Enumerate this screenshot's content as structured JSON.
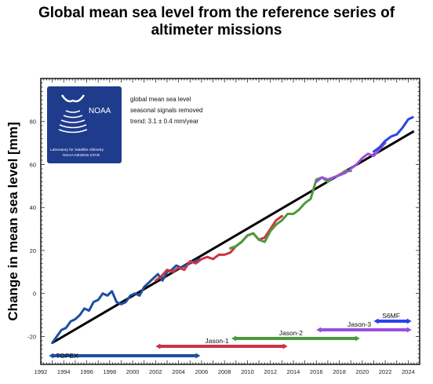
{
  "title_line1": "Global mean sea level from the reference series of",
  "title_line2": "altimeter missions",
  "logo": {
    "brand": "NOAA",
    "lab": "Laboratory for Satellite Altimetry",
    "org": "NOAA-NESDIS-STAR",
    "icon": "noaa-wave-logo"
  },
  "legend_lines": [
    "global mean sea level",
    "seasonal signals removed",
    "trend:  3.1 ± 0.4 mm/year"
  ],
  "colors": {
    "TOPEX": "#1f4fa0",
    "Jason-1": "#cc3344",
    "Jason-2": "#4e9a3a",
    "Jason-3": "#9b4de0",
    "S6MF": "#2b44e8",
    "trend": "#000000",
    "logo_bg": "#1f3b8c"
  },
  "chart_data": {
    "type": "line",
    "title": "Global mean sea level from the reference series of altimeter missions",
    "xlabel": "",
    "ylabel": "Change in mean sea level [mm]",
    "xlim": [
      1992,
      2025
    ],
    "ylim": [
      -33,
      100
    ],
    "x_ticks": [
      1992,
      1994,
      1996,
      1998,
      2000,
      2002,
      2004,
      2006,
      2008,
      2010,
      2012,
      2014,
      2016,
      2018,
      2020,
      2022,
      2024
    ],
    "y_ticks": [
      -20,
      0,
      20,
      40,
      60,
      80
    ],
    "grid": false,
    "trend_line": {
      "x": [
        1993.0,
        2024.5
      ],
      "y": [
        -23,
        75.5
      ]
    },
    "series": [
      {
        "name": "TOPEX",
        "x": [
          1993.0,
          1993.4,
          1993.8,
          1994.2,
          1994.6,
          1995.0,
          1995.4,
          1995.8,
          1996.2,
          1996.6,
          1997.0,
          1997.4,
          1997.8,
          1998.2,
          1998.6,
          1999.0,
          1999.4,
          1999.8,
          2000.2,
          2000.6,
          2001.0,
          2001.4,
          2001.8,
          2002.2,
          2002.6,
          2003.0,
          2003.4,
          2003.8,
          2004.2,
          2004.6,
          2005.0,
          2005.4,
          2005.8
        ],
        "values": [
          -23,
          -20,
          -17,
          -16,
          -13,
          -12,
          -10,
          -7,
          -8,
          -4,
          -3,
          0,
          -1,
          1,
          -4,
          -5,
          -4,
          -1,
          0,
          -1,
          3,
          5,
          7,
          9,
          6,
          10,
          11,
          13,
          12,
          13,
          14,
          15,
          16
        ]
      },
      {
        "name": "Jason-1",
        "x": [
          2002.0,
          2002.5,
          2003.0,
          2003.5,
          2004.0,
          2004.5,
          2005.0,
          2005.5,
          2006.0,
          2006.5,
          2007.0,
          2007.5,
          2008.0,
          2008.5,
          2009.0,
          2009.5,
          2010.0,
          2010.5,
          2011.0,
          2011.5,
          2012.0,
          2012.5,
          2013.0
        ],
        "values": [
          6,
          8,
          11,
          10,
          12,
          11,
          15,
          14,
          16,
          17,
          16,
          18,
          18,
          19,
          22,
          24,
          27,
          28,
          25,
          26,
          30,
          34,
          36
        ]
      },
      {
        "name": "Jason-2",
        "x": [
          2008.5,
          2009.0,
          2009.5,
          2010.0,
          2010.5,
          2011.0,
          2011.5,
          2012.0,
          2012.5,
          2013.0,
          2013.5,
          2014.0,
          2014.5,
          2015.0,
          2015.5,
          2016.0,
          2016.5,
          2017.0,
          2017.5,
          2018.0,
          2018.5,
          2019.0
        ],
        "values": [
          21,
          22,
          24,
          27,
          28,
          25,
          24,
          29,
          32,
          34,
          37,
          37,
          39,
          42,
          44,
          53,
          54,
          52,
          54,
          55,
          57,
          57
        ]
      },
      {
        "name": "Jason-3",
        "x": [
          2016.0,
          2016.5,
          2017.0,
          2017.5,
          2018.0,
          2018.5,
          2019.0,
          2019.5,
          2020.0,
          2020.5,
          2021.0,
          2021.5,
          2022.0
        ],
        "values": [
          52,
          54,
          53,
          54,
          55,
          56,
          58,
          60,
          63,
          65,
          64,
          67,
          70
        ]
      },
      {
        "name": "S6MF",
        "x": [
          2021.0,
          2021.5,
          2022.0,
          2022.5,
          2023.0,
          2023.5,
          2024.0,
          2024.4
        ],
        "values": [
          66,
          68,
          71,
          73,
          74,
          77,
          81,
          82
        ]
      }
    ],
    "missions": [
      {
        "name": "TOPEX",
        "start": 1992.7,
        "end": 2005.9,
        "row": 0,
        "label": "TOPEX"
      },
      {
        "name": "Jason-1",
        "start": 2002.0,
        "end": 2013.5,
        "row": 1,
        "label": "Jason-1"
      },
      {
        "name": "Jason-2",
        "start": 2008.6,
        "end": 2019.8,
        "row": 2,
        "label": "Jason-2"
      },
      {
        "name": "Jason-3",
        "start": 2016.0,
        "end": 2024.3,
        "row": 3,
        "label": "Jason-3"
      },
      {
        "name": "S6MF",
        "start": 2021.0,
        "end": 2024.3,
        "row": 4,
        "label": "S6MF"
      }
    ]
  }
}
